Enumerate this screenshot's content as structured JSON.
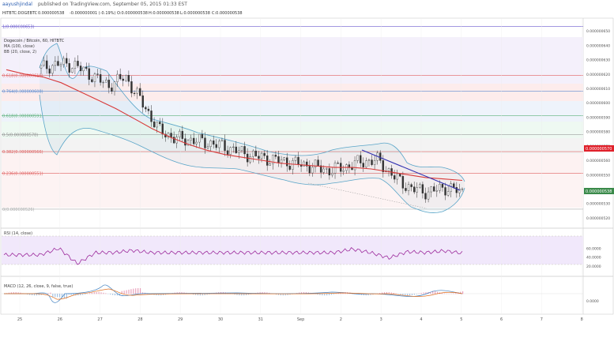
{
  "header": {
    "author": "aayushjindal",
    "published": "published on TradingView.com, September 05, 2015 01:33 EST"
  },
  "symbol_line": {
    "symbol": "HITBTC:DOGEBTC",
    "last": "0.000000538",
    "change": "-0.000000001 (-0.19%)",
    "open": "O:0.000000538",
    "high": "H:0.000000538",
    "low": "L:0.000000538",
    "close": "C:0.000000538"
  },
  "legend": {
    "title": "Dogecoin / Bitcoin, 60, HITBTC",
    "ma": "MA (100, close)",
    "bb": "BB (20, close, 2)",
    "rsi": "RSI (14, close)",
    "macd": "MACD (12, 26, close, 9, false, true)"
  },
  "fib_levels": [
    {
      "label": "1(0.000000653)",
      "price": 6.53e-07
    },
    {
      "label": "0.618(0.000000619)",
      "price": 6.19e-07
    },
    {
      "label": "0.764(0.000000608)",
      "price": 6.08e-07
    },
    {
      "label": "0.618(0.000000591)",
      "price": 5.91e-07
    },
    {
      "label": "0.5(0.000000578)",
      "price": 5.78e-07
    },
    {
      "label": "0.382(0.000000566)",
      "price": 5.66e-07
    },
    {
      "label": "0.236(0.000000551)",
      "price": 5.51e-07
    },
    {
      "label": "0(0.000000526)",
      "price": 5.26e-07
    }
  ],
  "colors": {
    "ma": "#d83a3a",
    "bb": "#5aa5c8",
    "trendline": "#3030b0",
    "rsi": "#9c2a9c",
    "macd": "#3f7fbf",
    "signal": "#e07020",
    "price_tag": "#e0202a",
    "last_tag": "#3a8a4a",
    "fib_top": "#6a5acd"
  },
  "chart_data": {
    "type": "candlestick",
    "ylim": [
      5.15e-07,
      6.55e-07
    ],
    "price_ticks": [
      "0.000000650",
      "0.000000640",
      "0.000000630",
      "0.000000620",
      "0.000000610",
      "0.000000600",
      "0.000000590",
      "0.000000580",
      "0.000000570",
      "0.000000560",
      "0.000000550",
      "0.000000540",
      "0.000000530",
      "0.000000520"
    ],
    "price_tag": "0.000000570",
    "last_price_tag": "0.000000538",
    "x_ticks": [
      "25",
      "26",
      "27",
      "28",
      "29",
      "30",
      "31",
      "Sep",
      "2",
      "3",
      "4",
      "5",
      "6",
      "7",
      "8"
    ],
    "close_series": [
      6.24e-07,
      6.27e-07,
      6.26e-07,
      6.19e-07,
      6.12e-07,
      6.18e-07,
      6e-07,
      5.81e-07,
      5.75e-07,
      5.74e-07,
      5.72e-07,
      5.69e-07,
      5.65e-07,
      5.62e-07,
      5.6e-07,
      5.58e-07,
      5.56e-07,
      5.53e-07,
      5.55e-07,
      5.59e-07,
      5.6e-07,
      5.48e-07,
      5.4e-07,
      5.38e-07,
      5.41e-07,
      5.38e-07
    ],
    "ma_series": [
      6.23e-07,
      6.2e-07,
      6.18e-07,
      6.14e-07,
      6.08e-07,
      6.02e-07,
      5.96e-07,
      5.89e-07,
      5.82e-07,
      5.76e-07,
      5.71e-07,
      5.67e-07,
      5.64e-07,
      5.62e-07,
      5.6e-07,
      5.58e-07,
      5.57e-07,
      5.56e-07,
      5.55e-07,
      5.55e-07,
      5.54e-07,
      5.52e-07,
      5.5e-07,
      5.48e-07,
      5.47e-07,
      5.46e-07
    ],
    "rsi": {
      "ticks": [
        "60.0000",
        "40.0000",
        "20.0000"
      ],
      "values": [
        45,
        45,
        45,
        60,
        25,
        50,
        50,
        55,
        50,
        50,
        50,
        50,
        50,
        50,
        50,
        50,
        50,
        50,
        50,
        58,
        50,
        38,
        52,
        50,
        54,
        49
      ]
    },
    "macd": {
      "ticks": [
        "0.0000"
      ]
    }
  }
}
